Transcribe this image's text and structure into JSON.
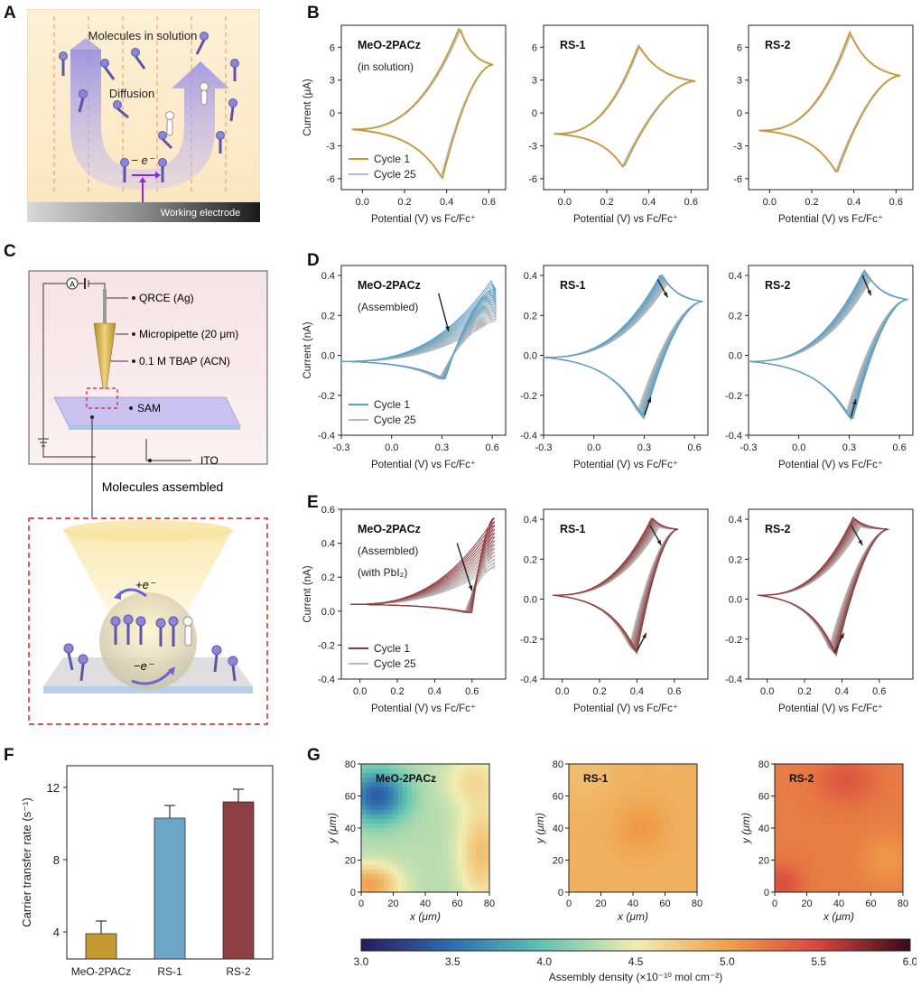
{
  "labels": {
    "A": "A",
    "B": "B",
    "C": "C",
    "D": "D",
    "E": "E",
    "F": "F",
    "G": "G"
  },
  "panelA": {
    "title": "Molecules in solution",
    "diffusion": "Diffusion",
    "electron": "− e⁻",
    "electrode": "Working electrode"
  },
  "panelC": {
    "qrce": "QRCE (Ag)",
    "micropipette": "Micropipette (20 μm)",
    "tbap": "0.1 M TBAP (ACN)",
    "sam": "SAM",
    "ito": "ITO",
    "ammeter": "A",
    "assembled": "Molecules assembled",
    "plus_e": "+e⁻",
    "minus_e": "−e⁻"
  },
  "colors": {
    "gold": "#C8992F",
    "blue": "#5B9EC4",
    "red": "#8E3A3C",
    "gray": "#B9B9B9",
    "bar1": "#C49A2E",
    "bar2": "#6BA5C8",
    "bar3": "#8E3F44"
  },
  "cv_common": {
    "xlabel": "Potential (V) vs Fc/Fc⁺",
    "ylabel_uA": "Current (μA)",
    "ylabel_nA": "Current (nA)",
    "cycle1": "Cycle 1",
    "cycle25": "Cycle 25"
  },
  "rowB": [
    {
      "name": "MeO-2PACz",
      "note": "(in solution)"
    },
    {
      "name": "RS-1",
      "note": ""
    },
    {
      "name": "RS-2",
      "note": ""
    }
  ],
  "rowD": [
    {
      "name": "MeO-2PACz",
      "note": "(Assembled)"
    },
    {
      "name": "RS-1",
      "note": ""
    },
    {
      "name": "RS-2",
      "note": ""
    }
  ],
  "rowE": [
    {
      "name": "MeO-2PACz",
      "note": "(Assembled)",
      "note2": "(with PbI₂)"
    },
    {
      "name": "RS-1",
      "note": ""
    },
    {
      "name": "RS-2",
      "note": ""
    }
  ],
  "chart_data": [
    {
      "panel": "B",
      "type": "line",
      "title": "MeO-2PACz",
      "xlabel": "Potential (V) vs Fc/Fc⁺",
      "ylabel": "Current (μA)",
      "xlim": [
        -0.1,
        0.68
      ],
      "ylim": [
        -7,
        8
      ],
      "xticks": [
        "0.0",
        "0.2",
        "0.4",
        "0.6"
      ],
      "yticks": [
        "-6",
        "-3",
        "0",
        "3",
        "6"
      ],
      "cv": {
        "start": -0.05,
        "end": 0.62,
        "Epa": 0.46,
        "Ipa": 7.8,
        "Epc": 0.38,
        "Ipc": -6.0,
        "i0": -1.5,
        "iend": 4.4
      },
      "series": [
        {
          "name": "Cycle 1"
        },
        {
          "name": "Cycle 25"
        }
      ]
    },
    {
      "panel": "B",
      "type": "line",
      "title": "RS-1",
      "xlabel": "Potential (V) vs Fc/Fc⁺",
      "ylabel": "",
      "xlim": [
        -0.1,
        0.68
      ],
      "ylim": [
        -7,
        8
      ],
      "xticks": [
        "0.0",
        "0.2",
        "0.4",
        "0.6"
      ],
      "yticks": [
        "-6",
        "-3",
        "0",
        "3",
        "6"
      ],
      "cv": {
        "start": -0.05,
        "end": 0.62,
        "Epa": 0.35,
        "Ipa": 6.2,
        "Epc": 0.28,
        "Ipc": -5.0,
        "i0": -1.9,
        "iend": 2.9
      }
    },
    {
      "panel": "B",
      "type": "line",
      "title": "RS-2",
      "xlabel": "Potential (V) vs Fc/Fc⁺",
      "ylabel": "",
      "xlim": [
        -0.1,
        0.68
      ],
      "ylim": [
        -7,
        8
      ],
      "xticks": [
        "0.0",
        "0.2",
        "0.4",
        "0.6"
      ],
      "yticks": [
        "-6",
        "-3",
        "0",
        "3",
        "6"
      ],
      "cv": {
        "start": -0.05,
        "end": 0.62,
        "Epa": 0.38,
        "Ipa": 7.4,
        "Epc": 0.32,
        "Ipc": -5.5,
        "i0": -1.6,
        "iend": 3.4
      }
    },
    {
      "panel": "D",
      "type": "line",
      "title": "MeO-2PACz",
      "xlabel": "Potential (V) vs Fc/Fc⁺",
      "ylabel": "Current (nA)",
      "xlim": [
        -0.3,
        0.68
      ],
      "ylim": [
        -0.4,
        0.45
      ],
      "xticks": [
        "-0.3",
        "0.0",
        "0.3",
        "0.6"
      ],
      "yticks": [
        "-0.4",
        "-0.2",
        "0.0",
        "0.2",
        "0.4"
      ],
      "cv": {
        "start": -0.3,
        "end": 0.62,
        "Epa": 0.6,
        "Ipa": 0.38,
        "Epc": 0.32,
        "Ipc": -0.12,
        "i0": -0.03,
        "iend": 0.33,
        "Ipa25": 0.2
      }
    },
    {
      "panel": "D",
      "type": "line",
      "title": "RS-1",
      "xlabel": "Potential (V) vs Fc/Fc⁺",
      "ylabel": "",
      "xlim": [
        -0.3,
        0.68
      ],
      "ylim": [
        -0.4,
        0.45
      ],
      "xticks": [
        "-0.3",
        "0.0",
        "0.3",
        "0.6"
      ],
      "yticks": [
        "-0.4",
        "-0.2",
        "0.0",
        "0.2",
        "0.4"
      ],
      "cv": {
        "start": -0.3,
        "end": 0.65,
        "Epa": 0.4,
        "Ipa": 0.41,
        "Epc": 0.3,
        "Ipc": -0.32,
        "i0": -0.01,
        "iend": 0.27
      }
    },
    {
      "panel": "D",
      "type": "line",
      "title": "RS-2",
      "xlabel": "Potential (V) vs Fc/Fc⁺",
      "ylabel": "",
      "xlim": [
        -0.3,
        0.68
      ],
      "ylim": [
        -0.4,
        0.45
      ],
      "xticks": [
        "-0.3",
        "0.0",
        "0.3",
        "0.6"
      ],
      "yticks": [
        "-0.4",
        "-0.2",
        "0.0",
        "0.2",
        "0.4"
      ],
      "cv": {
        "start": -0.3,
        "end": 0.65,
        "Epa": 0.39,
        "Ipa": 0.43,
        "Epc": 0.32,
        "Ipc": -0.33,
        "i0": -0.03,
        "iend": 0.28
      }
    },
    {
      "panel": "E",
      "type": "line",
      "title": "MeO-2PACz",
      "xlabel": "Potential (V) vs Fc/Fc⁺",
      "ylabel": "Current (nA)",
      "xlim": [
        -0.1,
        0.78
      ],
      "ylim": [
        -0.4,
        0.6
      ],
      "xticks": [
        "0.0",
        "0.2",
        "0.4",
        "0.6"
      ],
      "yticks": [
        "-0.4",
        "-0.2",
        "0.0",
        "0.2",
        "0.4",
        "0.6"
      ],
      "cv": {
        "start": -0.05,
        "end": 0.72,
        "Epa": 0.72,
        "Ipa": 0.55,
        "Epc": 0.6,
        "Ipc": -0.01,
        "i0": 0.04,
        "iend": 0.55,
        "Ipa25": 0.3
      }
    },
    {
      "panel": "E",
      "type": "line",
      "title": "RS-1",
      "xlabel": "Potential (V) vs Fc/Fc⁺",
      "ylabel": "",
      "xlim": [
        -0.1,
        0.78
      ],
      "ylim": [
        -0.4,
        0.45
      ],
      "xticks": [
        "0.0",
        "0.2",
        "0.4",
        "0.6"
      ],
      "yticks": [
        "-0.4",
        "-0.2",
        "0.0",
        "0.2",
        "0.4"
      ],
      "cv": {
        "start": -0.05,
        "end": 0.62,
        "Epa": 0.48,
        "Ipa": 0.41,
        "Epc": 0.4,
        "Ipc": -0.27,
        "i0": 0.02,
        "iend": 0.35
      }
    },
    {
      "panel": "E",
      "type": "line",
      "title": "RS-2",
      "xlabel": "Potential (V) vs Fc/Fc⁺",
      "ylabel": "",
      "xlim": [
        -0.1,
        0.78
      ],
      "ylim": [
        -0.4,
        0.45
      ],
      "xticks": [
        "0.0",
        "0.2",
        "0.4",
        "0.6"
      ],
      "yticks": [
        "-0.4",
        "-0.2",
        "0.0",
        "0.2",
        "0.4"
      ],
      "cv": {
        "start": -0.05,
        "end": 0.65,
        "Epa": 0.46,
        "Ipa": 0.41,
        "Epc": 0.37,
        "Ipc": -0.28,
        "i0": 0.02,
        "iend": 0.35
      }
    },
    {
      "panel": "F",
      "type": "bar",
      "title": "",
      "xlabel": "",
      "ylabel": "Carrier transfer rate (s⁻¹)",
      "ylim": [
        2.5,
        13.2
      ],
      "yticks": [
        "4",
        "8",
        "12"
      ],
      "categories": [
        "MeO-2PACz",
        "RS-1",
        "RS-2"
      ],
      "values": [
        3.9,
        10.3,
        11.2
      ],
      "errors": [
        0.7,
        0.7,
        0.7
      ]
    },
    {
      "panel": "G",
      "type": "heatmap",
      "titles": [
        "MeO-2PACz",
        "RS-1",
        "RS-2"
      ],
      "xlabel": "x (μm)",
      "ylabel": "y (μm)",
      "xlim": [
        0,
        80
      ],
      "ylim": [
        0,
        80
      ],
      "ticks": [
        "0",
        "20",
        "40",
        "60",
        "80"
      ],
      "colorbar": {
        "label": "Assembly density (×10⁻¹⁰ mol cm⁻²)",
        "min": 3.0,
        "max": 6.0,
        "ticks": [
          "3.0",
          "3.5",
          "4.0",
          "4.5",
          "5.0",
          "5.5",
          "6.0"
        ]
      },
      "mean_density": [
        4.3,
        4.95,
        5.25
      ]
    }
  ]
}
